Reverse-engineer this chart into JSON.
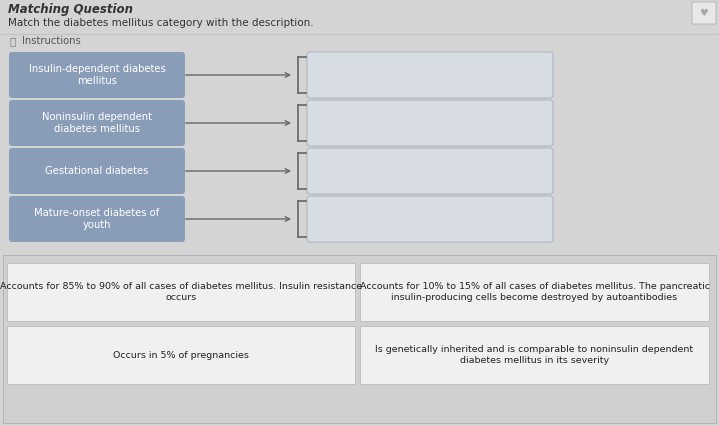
{
  "subtitle": "Match the diabetes mellitus category with the description.",
  "instructions": "Instructions",
  "page_bg": "#d4d4d4",
  "content_bg": "#e0e0e0",
  "left_labels": [
    "Insulin-dependent diabetes\nmellitus",
    "Noninsulin dependent\ndiabetes mellitus",
    "Gestational diabetes",
    "Mature-onset diabetes of\nyouth"
  ],
  "left_box_color": "#8a9db8",
  "left_box_text_color": "#ffffff",
  "right_box_color": "#d8dde3",
  "right_box_border": "#b0b8c4",
  "bottom_box_color": "#f0f0f0",
  "bottom_box_border": "#bbbbbb",
  "bottom_section_bg": "#d0d0d0",
  "bottom_texts": [
    "Accounts for 85% to 90% of all cases of diabetes mellitus. Insulin resistance\noccurs",
    "Accounts for 10% to 15% of all cases of diabetes mellitus. The pancreatic\ninsulin-producing cells become destroyed by autoantibodies",
    "Occurs in 5% of pregnancies",
    "Is genetically inherited and is comparable to noninsulin dependent\ndiabetes mellitus in its severity"
  ],
  "arrow_color": "#666666",
  "font_size_label": 7.2,
  "font_size_bottom": 6.8,
  "font_size_subtitle": 7.5,
  "font_size_instructions": 7.2,
  "title_partial": "Matching Question",
  "icon_color": "#888888"
}
